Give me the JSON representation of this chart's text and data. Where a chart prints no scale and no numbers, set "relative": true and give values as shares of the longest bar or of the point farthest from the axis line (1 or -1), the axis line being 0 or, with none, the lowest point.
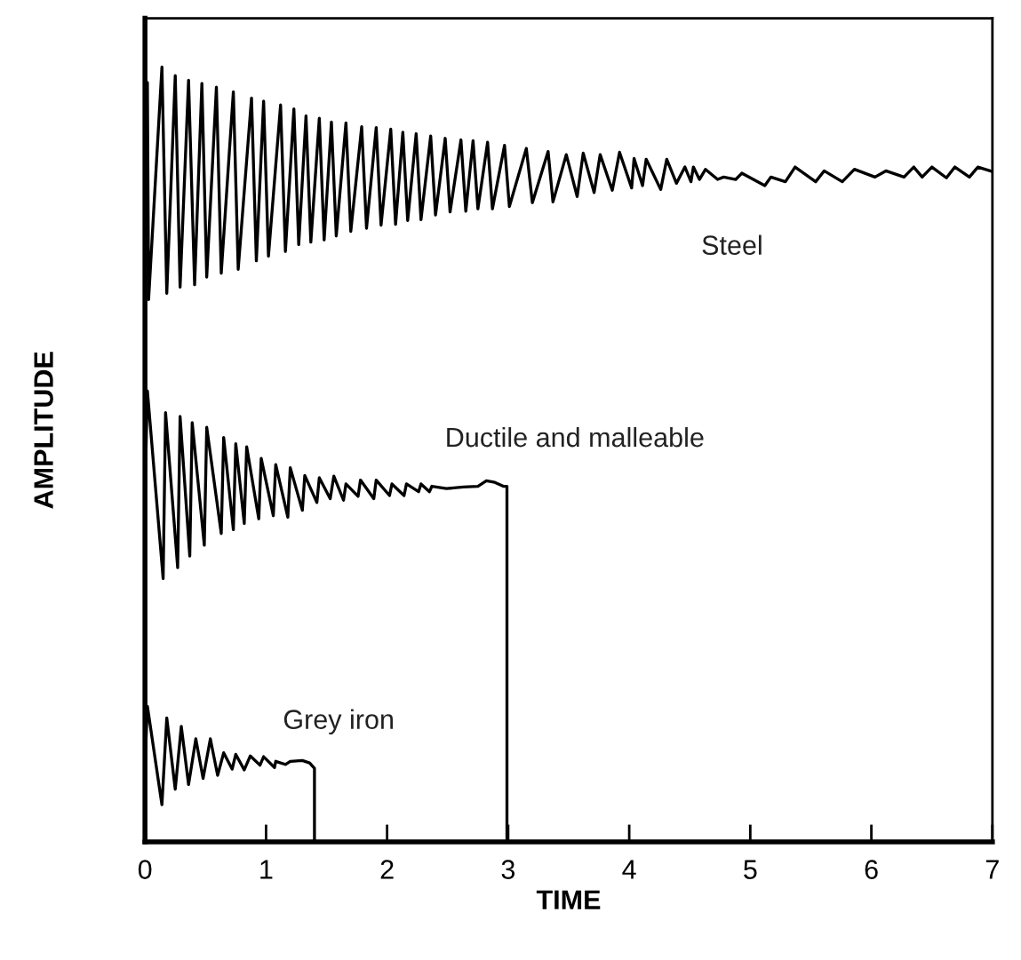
{
  "chart_data": {
    "type": "line",
    "xlabel": "TIME",
    "ylabel": "AMPLITUDE",
    "relative": true,
    "xlim": [
      0,
      7
    ],
    "xticks": [
      0,
      1,
      2,
      3,
      4,
      5,
      6,
      7
    ],
    "tick_labels": "x",
    "series": [
      {
        "name": "Steel",
        "color": "#000000",
        "x": [
          0,
          0.02,
          0.03,
          0.14,
          0.18,
          0.25,
          0.29,
          0.36,
          0.41,
          0.47,
          0.51,
          0.59,
          0.63,
          0.73,
          0.77,
          0.88,
          0.92,
          0.98,
          1.02,
          1.12,
          1.16,
          1.23,
          1.27,
          1.33,
          1.37,
          1.44,
          1.48,
          1.54,
          1.58,
          1.66,
          1.7,
          1.79,
          1.83,
          1.91,
          1.95,
          2.03,
          2.07,
          2.13,
          2.17,
          2.24,
          2.28,
          2.36,
          2.4,
          2.48,
          2.52,
          2.61,
          2.65,
          2.71,
          2.75,
          2.83,
          2.87,
          2.97,
          3.01,
          3.15,
          3.2,
          3.33,
          3.37,
          3.48,
          3.57,
          3.62,
          3.71,
          3.76,
          3.86,
          3.92,
          4.02,
          4.04,
          4.11,
          4.14,
          4.26,
          4.31,
          4.39,
          4.46,
          4.51,
          4.53,
          4.58,
          4.63,
          4.73,
          4.78,
          4.88,
          4.93,
          5.12,
          5.17,
          5.29,
          5.37,
          5.54,
          5.61,
          5.76,
          5.86,
          6.03,
          6.12,
          6.27,
          6.35,
          6.42,
          6.5,
          6.62,
          6.69,
          6.81,
          6.88,
          7.0
        ],
        "values": [
          0.86,
          0.98,
          0.7,
          1.0,
          0.708,
          0.989,
          0.716,
          0.983,
          0.719,
          0.979,
          0.729,
          0.974,
          0.734,
          0.968,
          0.739,
          0.96,
          0.75,
          0.956,
          0.756,
          0.951,
          0.762,
          0.946,
          0.771,
          0.937,
          0.774,
          0.934,
          0.777,
          0.929,
          0.782,
          0.928,
          0.788,
          0.923,
          0.792,
          0.922,
          0.796,
          0.92,
          0.797,
          0.916,
          0.802,
          0.914,
          0.803,
          0.911,
          0.809,
          0.908,
          0.813,
          0.906,
          0.814,
          0.905,
          0.817,
          0.903,
          0.817,
          0.899,
          0.82,
          0.895,
          0.825,
          0.891,
          0.826,
          0.887,
          0.833,
          0.889,
          0.838,
          0.887,
          0.841,
          0.89,
          0.844,
          0.882,
          0.847,
          0.881,
          0.842,
          0.881,
          0.85,
          0.871,
          0.852,
          0.871,
          0.855,
          0.868,
          0.855,
          0.858,
          0.855,
          0.863,
          0.847,
          0.858,
          0.852,
          0.871,
          0.852,
          0.866,
          0.852,
          0.868,
          0.858,
          0.866,
          0.858,
          0.871,
          0.858,
          0.871,
          0.857,
          0.871,
          0.858,
          0.871,
          0.865
        ]
      },
      {
        "name": "Ductile and malleable",
        "color": "#000000",
        "x": [
          0,
          0.02,
          0.15,
          0.17,
          0.27,
          0.29,
          0.37,
          0.39,
          0.49,
          0.51,
          0.63,
          0.65,
          0.73,
          0.75,
          0.82,
          0.84,
          0.94,
          0.96,
          1.06,
          1.08,
          1.18,
          1.2,
          1.3,
          1.32,
          1.42,
          1.44,
          1.53,
          1.56,
          1.64,
          1.66,
          1.76,
          1.78,
          1.89,
          1.91,
          2.02,
          2.04,
          2.14,
          2.16,
          2.26,
          2.28,
          2.35,
          2.37,
          2.49,
          2.63,
          2.75,
          2.82,
          2.89,
          2.96,
          2.99,
          2.99
        ],
        "values": [
          0.45,
          0.582,
          0.34,
          0.554,
          0.354,
          0.549,
          0.369,
          0.541,
          0.383,
          0.535,
          0.398,
          0.522,
          0.403,
          0.514,
          0.411,
          0.51,
          0.417,
          0.495,
          0.421,
          0.487,
          0.419,
          0.483,
          0.428,
          0.473,
          0.438,
          0.47,
          0.443,
          0.472,
          0.441,
          0.462,
          0.446,
          0.467,
          0.443,
          0.467,
          0.447,
          0.462,
          0.447,
          0.462,
          0.452,
          0.462,
          0.452,
          0.459,
          0.456,
          0.458,
          0.459,
          0.466,
          0.464,
          0.459,
          0.459,
          0.0
        ]
      },
      {
        "name": "Grey iron",
        "color": "#000000",
        "x": [
          0,
          0.02,
          0.14,
          0.18,
          0.25,
          0.3,
          0.36,
          0.42,
          0.48,
          0.54,
          0.6,
          0.65,
          0.72,
          0.75,
          0.82,
          0.87,
          0.95,
          0.98,
          1.07,
          1.08,
          1.16,
          1.2,
          1.3,
          1.36,
          1.4,
          1.4
        ],
        "values": [
          0.1,
          0.175,
          0.048,
          0.16,
          0.068,
          0.149,
          0.074,
          0.133,
          0.082,
          0.133,
          0.086,
          0.115,
          0.094,
          0.113,
          0.093,
          0.111,
          0.099,
          0.11,
          0.096,
          0.104,
          0.1,
          0.104,
          0.105,
          0.102,
          0.095,
          0.0
        ]
      }
    ]
  }
}
